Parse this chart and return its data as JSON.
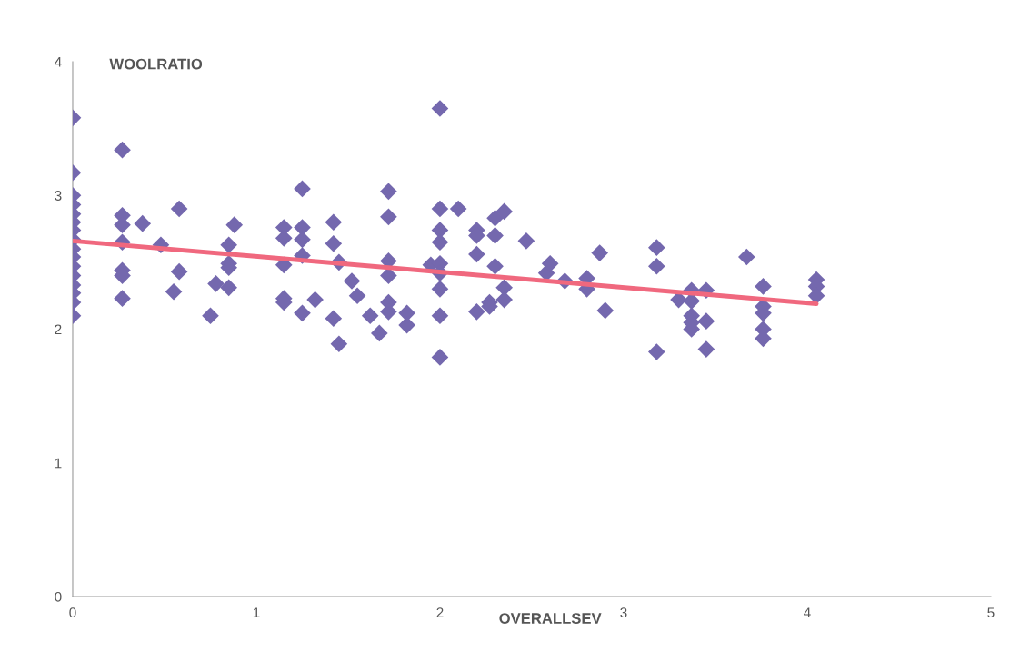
{
  "chart_data": {
    "type": "scatter",
    "xlabel": "OVERALLSEV",
    "ylabel": "WOOLRATIO",
    "xlim": [
      0,
      5
    ],
    "xticks": [
      0,
      1,
      2,
      3,
      4,
      5
    ],
    "ylim": [
      0,
      4
    ],
    "yticks": [
      0,
      1,
      2,
      3,
      4
    ],
    "grid": false,
    "marker": "diamond",
    "legend": false,
    "series": [
      {
        "color": "#7468ae",
        "x": [
          0,
          0,
          0,
          0,
          0,
          0,
          0,
          0,
          0,
          0,
          0,
          0,
          0,
          0,
          0,
          0,
          0.27,
          0.27,
          0.27,
          0.27,
          0.27,
          0.27,
          0.27,
          0.38,
          0.48,
          0.58,
          0.58,
          0.55,
          0.75,
          0.78,
          0.85,
          0.85,
          0.85,
          0.85,
          0.88,
          1.15,
          1.15,
          1.15,
          1.15,
          1.15,
          1.25,
          1.25,
          1.25,
          1.25,
          1.25,
          1.32,
          1.42,
          1.42,
          1.42,
          1.45,
          1.45,
          1.52,
          1.55,
          1.62,
          1.67,
          1.72,
          1.72,
          1.72,
          1.72,
          1.72,
          1.72,
          1.82,
          1.82,
          1.95,
          2.0,
          2.0,
          2.0,
          2.0,
          2.0,
          2.0,
          2.0,
          2.0,
          2.0,
          2.1,
          2.2,
          2.2,
          2.2,
          2.2,
          2.27,
          2.27,
          2.3,
          2.3,
          2.3,
          2.35,
          2.35,
          2.35,
          2.47,
          2.58,
          2.6,
          2.68,
          2.8,
          2.8,
          2.87,
          2.9,
          3.18,
          3.18,
          3.18,
          3.3,
          3.37,
          3.37,
          3.37,
          3.37,
          3.37,
          3.45,
          3.45,
          3.45,
          3.67,
          3.76,
          3.76,
          3.76,
          3.76,
          3.76,
          4.05,
          4.05,
          4.05
        ],
        "values": [
          3.58,
          3.17,
          3.0,
          2.93,
          2.86,
          2.8,
          2.74,
          2.67,
          2.6,
          2.54,
          2.47,
          2.4,
          2.33,
          2.27,
          2.2,
          2.1,
          3.34,
          2.85,
          2.78,
          2.65,
          2.44,
          2.4,
          2.23,
          2.79,
          2.63,
          2.9,
          2.43,
          2.28,
          2.1,
          2.34,
          2.63,
          2.49,
          2.46,
          2.31,
          2.78,
          2.76,
          2.68,
          2.48,
          2.23,
          2.2,
          3.05,
          2.76,
          2.67,
          2.55,
          2.12,
          2.22,
          2.8,
          2.64,
          2.08,
          2.5,
          1.89,
          2.36,
          2.25,
          2.1,
          1.97,
          3.03,
          2.84,
          2.51,
          2.4,
          2.2,
          2.13,
          2.12,
          2.03,
          2.48,
          3.65,
          2.9,
          2.74,
          2.65,
          2.49,
          2.42,
          2.3,
          2.1,
          1.79,
          2.9,
          2.74,
          2.7,
          2.56,
          2.13,
          2.2,
          2.17,
          2.83,
          2.7,
          2.47,
          2.88,
          2.31,
          2.22,
          2.66,
          2.42,
          2.49,
          2.36,
          2.38,
          2.3,
          2.57,
          2.14,
          2.61,
          2.47,
          1.83,
          2.22,
          2.29,
          2.21,
          2.1,
          2.05,
          2.0,
          2.29,
          2.06,
          1.85,
          2.54,
          2.32,
          2.17,
          2.12,
          2.0,
          1.93,
          2.37,
          2.32,
          2.25
        ]
      },
      {
        "type": "line",
        "color": "#f0687e",
        "marker": "none",
        "x": [
          0,
          4.05
        ],
        "values": [
          2.66,
          2.19
        ]
      }
    ]
  }
}
